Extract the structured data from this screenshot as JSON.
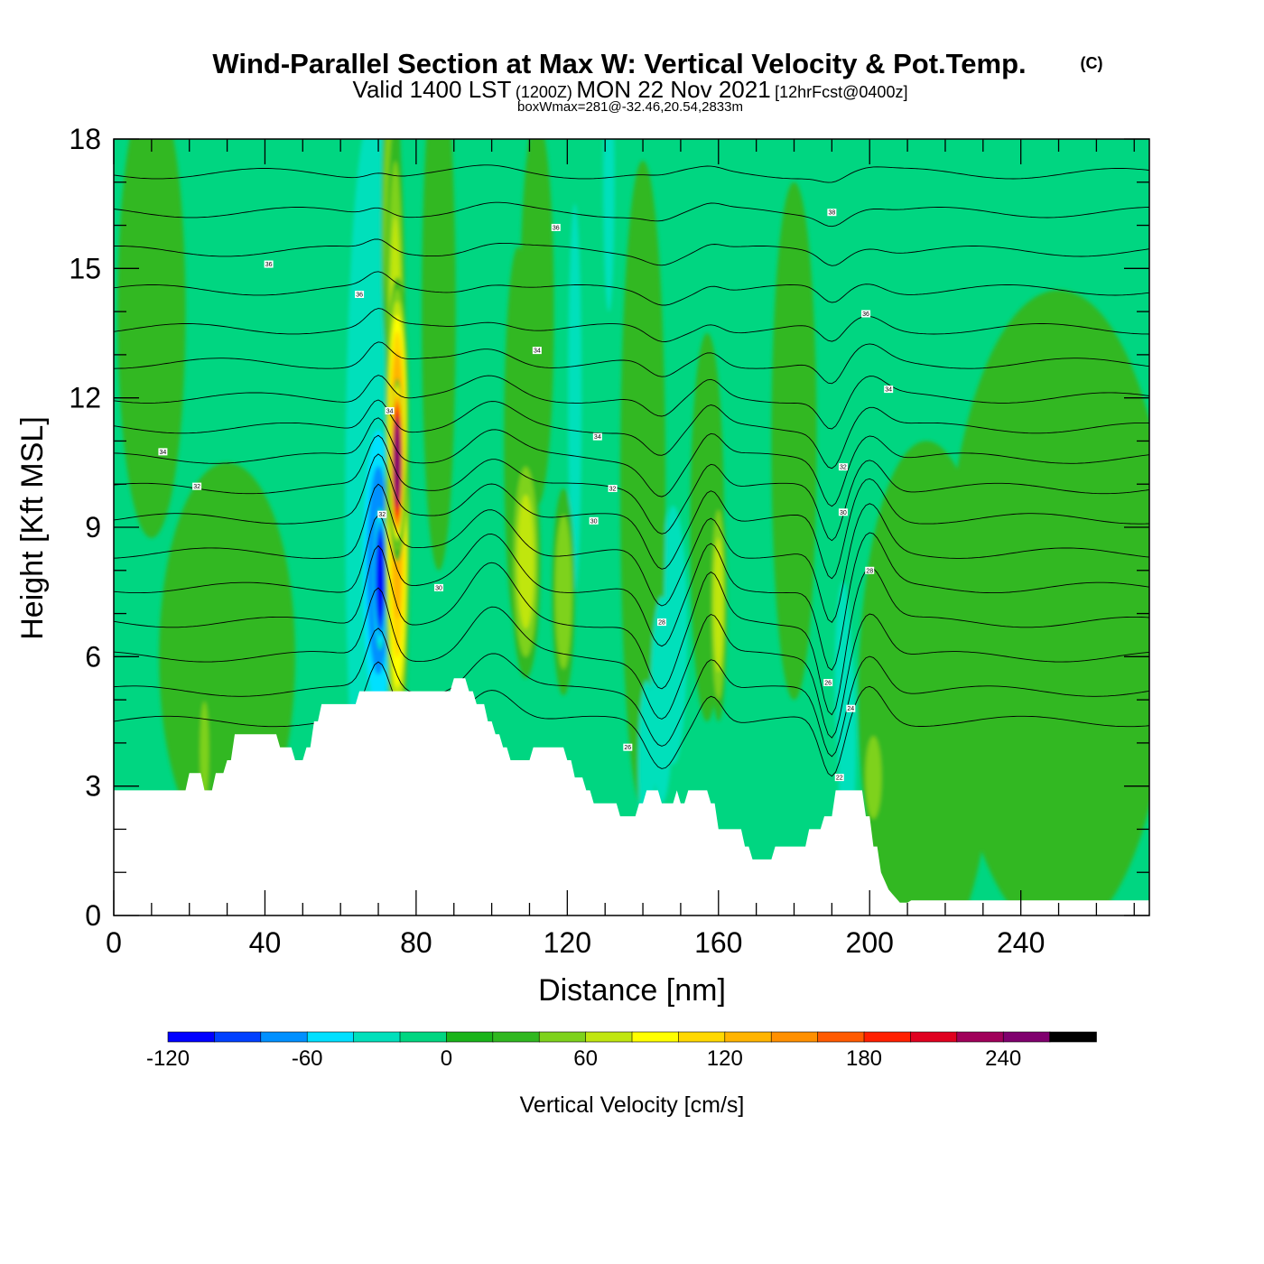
{
  "title": {
    "main": "Wind-Parallel Section at Max W: Vertical Velocity & Pot.Temp.",
    "copyright": "(C)",
    "valid_prefix": "Valid 1400 LST",
    "valid_utc": "(1200Z)",
    "valid_date": "MON 22 Nov 2021",
    "forecast": "[12hrFcst@0400z]",
    "boxwmax": "boxWmax=281@-32.46,20.54,2833m"
  },
  "colors": {
    "background_field": "#00d681",
    "terrain": "#ffffff",
    "contour_line": "#000000",
    "colorbar": [
      "#0000ff",
      "#0040ff",
      "#0090ff",
      "#00e0ff",
      "#00e0bb",
      "#00d681",
      "#1ab41a",
      "#30b820",
      "#7ed21c",
      "#c0e610",
      "#ffff00",
      "#ffd800",
      "#ffb400",
      "#ff9000",
      "#ff5a00",
      "#ff1f00",
      "#e0001f",
      "#a0005a",
      "#80006e"
    ]
  },
  "chart_data": {
    "type": "heatmap",
    "xlabel": "Distance [nm]",
    "ylabel": "Height [Kft MSL]",
    "xlim": [
      0,
      274
    ],
    "ylim": [
      0,
      18
    ],
    "x_ticks": [
      0,
      40,
      80,
      120,
      160,
      200,
      240
    ],
    "x_tick_labels": [
      "0",
      "40",
      "80",
      "120",
      "160",
      "200",
      "240"
    ],
    "y_ticks": [
      0,
      3,
      6,
      9,
      12,
      15,
      18
    ],
    "y_tick_labels": [
      "0",
      "3",
      "6",
      "9",
      "12",
      "15",
      "18"
    ],
    "colorbar": {
      "title": "Vertical Velocity [cm/s]",
      "min": -120,
      "max": 280,
      "step": 20,
      "tick_values": [
        -120,
        -60,
        0,
        60,
        120,
        180,
        240
      ],
      "tick_labels": [
        "-120",
        "-60",
        "0",
        "60",
        "120",
        "180",
        "240"
      ]
    },
    "terrain": [
      [
        0,
        2.9
      ],
      [
        19,
        2.9
      ],
      [
        20,
        3.3
      ],
      [
        23,
        3.3
      ],
      [
        24,
        2.9
      ],
      [
        26,
        2.9
      ],
      [
        27,
        3.3
      ],
      [
        29,
        3.3
      ],
      [
        30,
        3.6
      ],
      [
        31,
        3.6
      ],
      [
        32,
        4.2
      ],
      [
        43,
        4.2
      ],
      [
        44,
        3.9
      ],
      [
        47,
        3.9
      ],
      [
        48,
        3.6
      ],
      [
        50,
        3.6
      ],
      [
        51,
        3.9
      ],
      [
        52,
        3.9
      ],
      [
        53,
        4.5
      ],
      [
        54,
        4.5
      ],
      [
        55,
        4.9
      ],
      [
        64,
        4.9
      ],
      [
        65,
        5.2
      ],
      [
        89,
        5.2
      ],
      [
        90,
        5.5
      ],
      [
        93,
        5.5
      ],
      [
        94,
        5.2
      ],
      [
        95,
        5.2
      ],
      [
        96,
        4.9
      ],
      [
        98,
        4.9
      ],
      [
        99,
        4.5
      ],
      [
        100,
        4.5
      ],
      [
        101,
        4.2
      ],
      [
        102,
        4.2
      ],
      [
        103,
        3.9
      ],
      [
        104,
        3.9
      ],
      [
        105,
        3.6
      ],
      [
        110,
        3.6
      ],
      [
        111,
        3.9
      ],
      [
        119,
        3.9
      ],
      [
        120,
        3.6
      ],
      [
        121,
        3.6
      ],
      [
        122,
        3.2
      ],
      [
        124,
        3.2
      ],
      [
        125,
        2.9
      ],
      [
        126,
        2.9
      ],
      [
        127,
        2.6
      ],
      [
        133,
        2.6
      ],
      [
        134,
        2.3
      ],
      [
        138,
        2.3
      ],
      [
        139,
        2.6
      ],
      [
        140,
        2.6
      ],
      [
        141,
        2.9
      ],
      [
        144,
        2.9
      ],
      [
        145,
        2.6
      ],
      [
        148,
        2.6
      ],
      [
        149,
        2.9
      ],
      [
        150,
        2.6
      ],
      [
        151,
        2.6
      ],
      [
        152,
        2.9
      ],
      [
        157,
        2.9
      ],
      [
        158,
        2.6
      ],
      [
        159,
        2.6
      ],
      [
        160,
        2.0
      ],
      [
        166,
        2.0
      ],
      [
        167,
        1.6
      ],
      [
        168,
        1.6
      ],
      [
        169,
        1.3
      ],
      [
        174,
        1.3
      ],
      [
        175,
        1.6
      ],
      [
        183,
        1.6
      ],
      [
        184,
        2.0
      ],
      [
        187,
        2.0
      ],
      [
        188,
        2.3
      ],
      [
        190,
        2.3
      ],
      [
        191,
        2.9
      ],
      [
        198,
        2.9
      ],
      [
        199,
        2.3
      ],
      [
        200,
        2.3
      ],
      [
        201,
        1.6
      ],
      [
        202,
        1.6
      ],
      [
        203,
        1.0
      ],
      [
        204,
        0.8
      ],
      [
        205,
        0.6
      ],
      [
        206,
        0.5
      ],
      [
        207,
        0.4
      ],
      [
        208,
        0.3
      ],
      [
        210,
        0.3
      ],
      [
        211,
        0.35
      ],
      [
        274,
        0.35
      ]
    ],
    "w_features": [
      {
        "x": 70.5,
        "y": 7.8,
        "sx": 1.2,
        "sy": 1.1,
        "w": -120
      },
      {
        "x": 70.0,
        "y": 8.0,
        "sx": 3.2,
        "sy": 2.6,
        "w": -65
      },
      {
        "x": 68.0,
        "y": 9.5,
        "sx": 4.5,
        "sy": 6.0,
        "w": -28
      },
      {
        "x": 69.5,
        "y": 15.0,
        "sx": 1.6,
        "sy": 3.5,
        "w": -35
      },
      {
        "x": 75.0,
        "y": 10.5,
        "sx": 1.2,
        "sy": 1.3,
        "w": 281
      },
      {
        "x": 75.0,
        "y": 11.5,
        "sx": 2.0,
        "sy": 2.2,
        "w": 130
      },
      {
        "x": 75.0,
        "y": 9.0,
        "sx": 2.2,
        "sy": 3.5,
        "w": 120
      },
      {
        "x": 74.5,
        "y": 12.5,
        "sx": 1.8,
        "sy": 4.0,
        "w": 65
      },
      {
        "x": 73.5,
        "y": 16.0,
        "sx": 1.8,
        "sy": 2.5,
        "w": 50
      },
      {
        "x": 109.0,
        "y": 8.2,
        "sx": 2.6,
        "sy": 1.8,
        "w": 60
      },
      {
        "x": 119.0,
        "y": 7.5,
        "sx": 2.0,
        "sy": 1.6,
        "w": 45
      },
      {
        "x": 107.0,
        "y": 11.0,
        "sx": 2.5,
        "sy": 3.0,
        "w": 25
      },
      {
        "x": 112.0,
        "y": 14.0,
        "sx": 3.0,
        "sy": 3.0,
        "w": 25
      },
      {
        "x": 86.0,
        "y": 14.0,
        "sx": 3.0,
        "sy": 4.0,
        "w": 25
      },
      {
        "x": 160.0,
        "y": 7.2,
        "sx": 1.5,
        "sy": 1.8,
        "w": 60
      },
      {
        "x": 157.0,
        "y": 9.0,
        "sx": 3.0,
        "sy": 3.0,
        "w": 25
      },
      {
        "x": 145.0,
        "y": 5.0,
        "sx": 2.0,
        "sy": 1.6,
        "w": -32
      },
      {
        "x": 141.0,
        "y": 3.5,
        "sx": 1.5,
        "sy": 1.3,
        "w": -28
      },
      {
        "x": 148.0,
        "y": 6.5,
        "sx": 2.5,
        "sy": 2.0,
        "w": -22
      },
      {
        "x": 194.0,
        "y": 4.0,
        "sx": 1.6,
        "sy": 1.7,
        "w": -30
      },
      {
        "x": 193.0,
        "y": 5.5,
        "sx": 1.5,
        "sy": 1.5,
        "w": -22
      },
      {
        "x": 201.0,
        "y": 3.2,
        "sx": 1.8,
        "sy": 0.8,
        "w": 55
      },
      {
        "x": 122.0,
        "y": 12.0,
        "sx": 1.2,
        "sy": 3.0,
        "w": -25
      },
      {
        "x": 131.0,
        "y": 17.0,
        "sx": 1.0,
        "sy": 2.0,
        "w": -20
      },
      {
        "x": 24.0,
        "y": 3.8,
        "sx": 1.0,
        "sy": 1.0,
        "w": 50
      },
      {
        "x": 10.0,
        "y": 14.0,
        "sx": 6.0,
        "sy": 3.5,
        "w": 25
      },
      {
        "x": 30.0,
        "y": 6.0,
        "sx": 12.0,
        "sy": 3.0,
        "w": 22
      },
      {
        "x": 180.0,
        "y": 11.0,
        "sx": 4.0,
        "sy": 4.0,
        "w": 22
      },
      {
        "x": 215.0,
        "y": 5.0,
        "sx": 12.0,
        "sy": 4.0,
        "w": 22
      },
      {
        "x": 250.0,
        "y": 7.0,
        "sx": 20.0,
        "sy": 5.0,
        "w": 22
      },
      {
        "x": 260.0,
        "y": 11.0,
        "sx": 5.0,
        "sy": 1.5,
        "w": 22
      },
      {
        "x": 240.0,
        "y": 11.0,
        "sx": 6.0,
        "sy": 1.5,
        "w": 22
      },
      {
        "x": 140.0,
        "y": 10.0,
        "sx": 4.0,
        "sy": 5.0,
        "w": 22
      }
    ],
    "theta_levels": [
      {
        "h": 4.5,
        "amp": 2.0
      },
      {
        "h": 5.2,
        "amp": 2.2
      },
      {
        "h": 6.0,
        "amp": 2.6
      },
      {
        "h": 6.8,
        "amp": 3.0
      },
      {
        "h": 7.6,
        "amp": 2.8
      },
      {
        "h": 8.4,
        "amp": 2.5
      },
      {
        "h": 9.2,
        "amp": 2.2
      },
      {
        "h": 9.9,
        "amp": 1.8
      },
      {
        "h": 10.6,
        "amp": 1.5
      },
      {
        "h": 11.3,
        "amp": 1.2
      },
      {
        "h": 12.0,
        "amp": 1.0
      },
      {
        "h": 12.8,
        "amp": 0.8
      },
      {
        "h": 13.6,
        "amp": 0.6
      },
      {
        "h": 14.5,
        "amp": 0.5
      },
      {
        "h": 15.4,
        "amp": 0.4
      },
      {
        "h": 16.3,
        "amp": 0.3
      },
      {
        "h": 17.2,
        "amp": 0.2
      }
    ],
    "contour_labels": [
      {
        "text": "36",
        "x": 41,
        "y": 15.1
      },
      {
        "text": "36",
        "x": 65,
        "y": 14.4
      },
      {
        "text": "36",
        "x": 117,
        "y": 15.95
      },
      {
        "text": "38",
        "x": 190,
        "y": 16.3
      },
      {
        "text": "36",
        "x": 199,
        "y": 13.95
      },
      {
        "text": "34",
        "x": 112,
        "y": 13.1
      },
      {
        "text": "34",
        "x": 73,
        "y": 11.7
      },
      {
        "text": "34",
        "x": 13,
        "y": 10.75
      },
      {
        "text": "32",
        "x": 22,
        "y": 9.95
      },
      {
        "text": "34",
        "x": 128,
        "y": 11.1
      },
      {
        "text": "34",
        "x": 205,
        "y": 12.2
      },
      {
        "text": "32",
        "x": 132,
        "y": 9.9
      },
      {
        "text": "32",
        "x": 193,
        "y": 10.4
      },
      {
        "text": "30",
        "x": 127,
        "y": 9.15
      },
      {
        "text": "30",
        "x": 193,
        "y": 9.35
      },
      {
        "text": "32",
        "x": 71,
        "y": 9.3
      },
      {
        "text": "30",
        "x": 86,
        "y": 7.6
      },
      {
        "text": "28",
        "x": 200,
        "y": 8.0
      },
      {
        "text": "28",
        "x": 145,
        "y": 6.8
      },
      {
        "text": "26",
        "x": 189,
        "y": 5.4
      },
      {
        "text": "24",
        "x": 195,
        "y": 4.8
      },
      {
        "text": "26",
        "x": 136,
        "y": 3.9
      },
      {
        "text": "22",
        "x": 192,
        "y": 3.2
      }
    ]
  }
}
